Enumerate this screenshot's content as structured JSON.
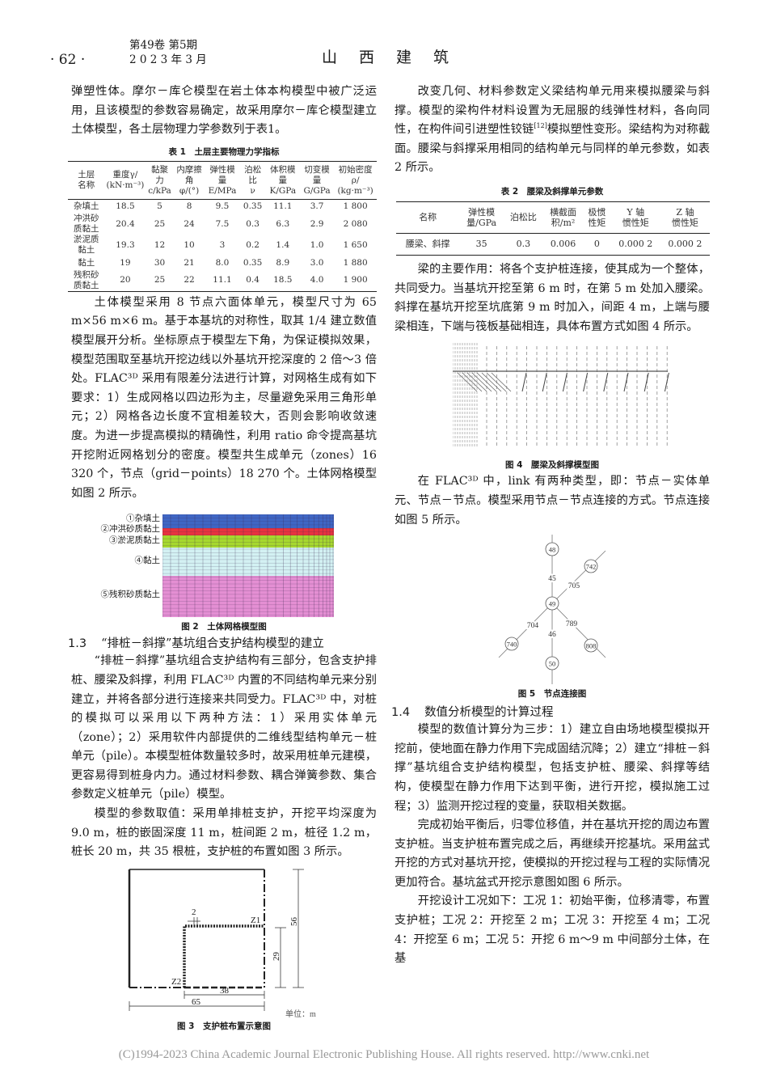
{
  "header": {
    "page_number": "· 62 ·",
    "volume_issue": "第49卷 第5期",
    "date": "2 0 2 3 年 3 月",
    "journal": "山　西　建　筑"
  },
  "left": {
    "p1": "弹塑性体。摩尔－库仑模型在岩土体本构模型中被广泛运用，且该模型的参数容易确定，故采用摩尔－库仑模型建立土体模型，各土层物理力学参数列于表1。",
    "p2": "土体模型采用 8 节点六面体单元，模型尺寸为 65 m×56 m×6 m。基于本基坑的对称性，取其 1/4 建立数值模型展开分析。坐标原点于模型左下角，为保证模拟效果，模型范围取至基坑开挖边线以外基坑开挖深度的 2 倍～3 倍处。FLAC³ᴰ 采用有限差分法进行计算，对网格生成有如下要求：1）生成网格以四边形为主，尽量避免采用三角形单元；2）网格各边长度不宜相差较大，否则会影响收敛速度。为进一步提高模拟的精确性，利用 ratio 命令提高基坑开挖附近网格划分的密度。模型共生成单元（zones）16 320 个，节点（grid－points）18 270 个。土体网格模型如图 2 所示。",
    "h13_num": "1.3",
    "h13_title": "“排桩－斜撑”基坑组合支护结构模型的建立",
    "p3": "“排桩－斜撑”基坑组合支护结构有三部分，包含支护排桩、腰梁及斜撑，利用 FLAC³ᴰ 内置的不同结构单元来分别建立，并将各部分进行连接来共同受力。FLAC³ᴰ 中，对桩的模拟可以采用以下两种方法：1）采用实体单元（zone）；2）采用软件内部提供的二维线型结构单元－桩单元（pile）。本模型桩体数量较多时，故采用桩单元建模，更容易得到桩身内力。通过材料参数、耦合弹簧参数、集合参数定义桩单元（pile）模型。",
    "p4": "模型的参数取值：采用单排桩支护，开挖平均深度为 9.0 m，桩的嵌固深度 11 m，桩间距 2 m，桩径 1.2 m，桩长 20 m，共 35 根桩，支护桩的布置如图 3 所示。"
  },
  "table1": {
    "caption": "表 1　土层主要物理力学指标",
    "headers": [
      [
        "土层",
        "名称"
      ],
      [
        "重度γ/",
        "(kN·m⁻³)"
      ],
      [
        "黏聚力",
        "c/kPa"
      ],
      [
        "内摩擦角",
        "φ/(°)"
      ],
      [
        "弹性模量",
        "E/MPa"
      ],
      [
        "泊松比",
        "ν"
      ],
      [
        "体积模量",
        "K/GPa"
      ],
      [
        "切变模量",
        "G/GPa"
      ],
      [
        "初始密度ρ/",
        "(kg·m⁻³)"
      ]
    ],
    "rows": [
      [
        "杂填土",
        "18.5",
        "5",
        "8",
        "9.5",
        "0.35",
        "11.1",
        "3.7",
        "1 800"
      ],
      [
        "冲洪砂质黏土",
        "20.4",
        "25",
        "24",
        "7.5",
        "0.3",
        "6.3",
        "2.9",
        "2 080"
      ],
      [
        "淤泥质黏土",
        "19.3",
        "12",
        "10",
        "3",
        "0.2",
        "1.4",
        "1.0",
        "1 650"
      ],
      [
        "黏土",
        "19",
        "30",
        "21",
        "8.0",
        "0.35",
        "8.9",
        "3.0",
        "1 880"
      ],
      [
        "残积砂质黏土",
        "20",
        "25",
        "22",
        "11.1",
        "0.4",
        "18.5",
        "4.0",
        "1 900"
      ]
    ]
  },
  "fig2": {
    "caption": "图 2　土体网格模型图",
    "layers": [
      {
        "label": "①杂填土",
        "color": "#3f66c4"
      },
      {
        "label": "②冲洪砂质黏土",
        "color": "#e8333f"
      },
      {
        "label": "③淤泥质黏土",
        "color": "#a6d82e"
      },
      {
        "label": "④黏土",
        "color": "#d3f1f3"
      },
      {
        "label": "⑤残积砂质黏土",
        "color": "#e48fd3"
      }
    ]
  },
  "fig3": {
    "caption": "图 3　支护桩布置示意图",
    "dim_spacing": "2",
    "dim_38": "38",
    "dim_65": "65",
    "dim_29": "29",
    "dim_56": "56",
    "z1": "Z1",
    "z2": "Z2",
    "unit": "单位：m"
  },
  "right": {
    "p1": "改变几何、材料参数定义梁结构单元用来模拟腰梁与斜撑。模型的梁构件材料设置为无屈服的线弹性材料，各向同性，在构件间引进塑性铰链",
    "p1_ref": "[12]",
    "p1_end": "模拟塑性变形。梁结构为对称截面。腰梁与斜撑采用相同的结构单元与同样的单元参数，如表 2 所示。",
    "p2": "梁的主要作用：将各个支护桩连接，使其成为一个整体，共同受力。当基坑开挖至第 6 m 时，在第 5 m 处加入腰梁。斜撑在基坑开挖至坑底第 9 m 时加入，间距 4 m，上端与腰梁相连，下端与筏板基础相连，具体布置方式如图 4 所示。",
    "p3": "在 FLAC³ᴰ 中，link 有两种类型，即：节点－实体单元、节点－节点。模型采用节点－节点连接的方式。节点连接如图 5 所示。",
    "h14_num": "1.4",
    "h14_title": "数值分析模型的计算过程",
    "p4": "模型的数值计算分为三步：1）建立自由场地模型模拟开挖前，使地面在静力作用下完成固结沉降；2）建立“排桩－斜撑”基坑组合支护结构模型，包括支护桩、腰梁、斜撑等结构，使模型在静力作用下达到平衡，进行开挖，模拟施工过程；3）监测开挖过程的变量，获取相关数据。",
    "p5": "完成初始平衡后，归零位移值，并在基坑开挖的周边布置支护桩。当支护桩布置完成之后，再继续开挖基坑。采用盆式开挖的方式对基坑开挖，使模拟的开挖过程与工程的实际情况更加符合。基坑盆式开挖示意图如图 6 所示。",
    "p6": "开挖设计工况如下：工况 1：初始平衡，位移清零，布置支护桩；工况 2：开挖至 2 m；工况 3：开挖至 4 m；工况 4：开挖至 6 m；工况 5：开挖 6 m～9 m 中间部分土体，在基"
  },
  "table2": {
    "caption": "表 2　腰梁及斜撑单元参数",
    "headers": [
      [
        "名称",
        ""
      ],
      [
        "弹性模",
        "量/GPa"
      ],
      [
        "泊松比",
        ""
      ],
      [
        "横截面",
        "积/m²"
      ],
      [
        "极惯",
        "性矩"
      ],
      [
        "Y 轴",
        "惯性矩"
      ],
      [
        "Z 轴",
        "惯性矩"
      ]
    ],
    "rows": [
      [
        "腰梁、斜撑",
        "35",
        "0.3",
        "0.006",
        "0",
        "0.000 2",
        "0.000 2"
      ]
    ]
  },
  "fig4": {
    "caption": "图 4　腰梁及斜撑模型图"
  },
  "fig5": {
    "caption": "图 5　节点连接图",
    "nodes": [
      "48",
      "742",
      "49",
      "740",
      "808",
      "50"
    ],
    "links": [
      "45",
      "705",
      "704",
      "789",
      "46"
    ]
  },
  "footer": "(C)1994-2023 China Academic Journal Electronic Publishing House. All rights reserved.    http://www.cnki.net"
}
